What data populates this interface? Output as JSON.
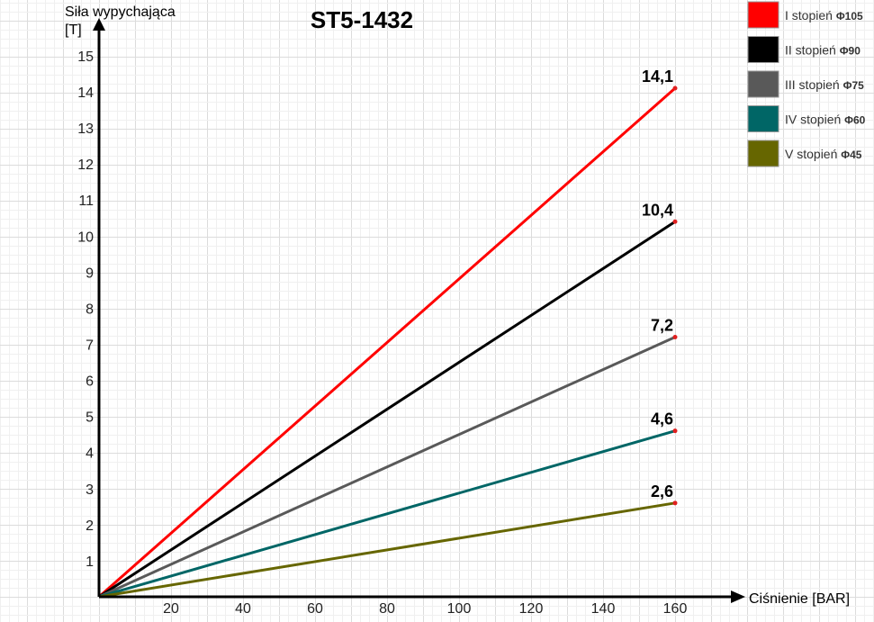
{
  "chart_data": {
    "type": "line",
    "title": "ST5-1432",
    "ylabel_line1": "Siła wypychająca",
    "ylabel_line2": "[T]",
    "xlabel": "Ciśnienie [BAR]",
    "xlim": [
      0,
      160
    ],
    "ylim": [
      0,
      15
    ],
    "xticks": [
      20,
      40,
      60,
      80,
      100,
      120,
      140,
      160
    ],
    "yticks": [
      1,
      2,
      3,
      4,
      5,
      6,
      7,
      8,
      9,
      10,
      11,
      12,
      13,
      14,
      15
    ],
    "grid": true,
    "legend_position": "top-right",
    "series": [
      {
        "name": "I stopień",
        "dia": "Φ105",
        "color": "#ff0000",
        "x": [
          0,
          160
        ],
        "y": [
          0,
          14.1
        ],
        "end_label": "14,1"
      },
      {
        "name": "II stopień",
        "dia": "Φ90",
        "color": "#000000",
        "x": [
          0,
          160
        ],
        "y": [
          0,
          10.4
        ],
        "end_label": "10,4"
      },
      {
        "name": "III stopień",
        "dia": "Φ75",
        "color": "#595959",
        "x": [
          0,
          160
        ],
        "y": [
          0,
          7.2
        ],
        "end_label": "7,2"
      },
      {
        "name": "IV stopień",
        "dia": "Φ60",
        "color": "#006666",
        "x": [
          0,
          160
        ],
        "y": [
          0,
          4.6
        ],
        "end_label": "4,6"
      },
      {
        "name": "V stopień",
        "dia": "Φ45",
        "color": "#666600",
        "x": [
          0,
          160
        ],
        "y": [
          0,
          2.6
        ],
        "end_label": "2,6"
      }
    ]
  }
}
